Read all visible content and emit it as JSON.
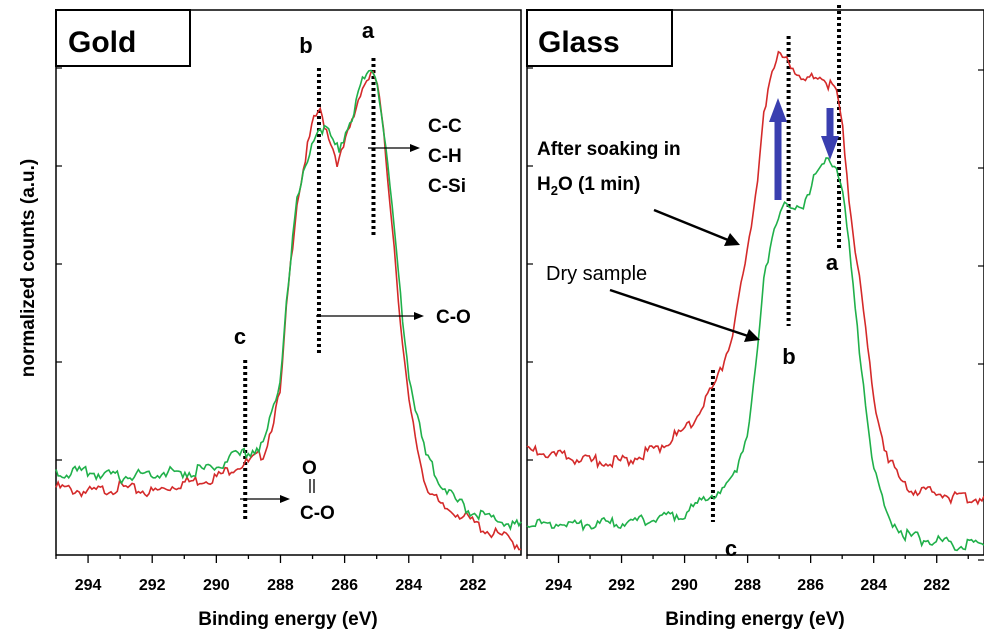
{
  "colors": {
    "red": "#d42a2a",
    "green": "#20b04a",
    "blue": "#3a3fb0"
  },
  "ylabel": "normalized counts (a.u.)",
  "chart_data": [
    {
      "type": "line",
      "title": "Gold",
      "xlabel": "Binding energy (eV)",
      "ylabel": "normalized counts (a.u.)",
      "xlim": [
        295,
        280.5
      ],
      "xticks": [
        294,
        292,
        290,
        288,
        286,
        284,
        282
      ],
      "ylim": [
        0,
        1
      ],
      "series": [
        {
          "color": "red",
          "x": [
            295,
            294,
            293,
            292,
            291,
            290,
            289.5,
            289,
            288.5,
            288,
            287.8,
            287.5,
            287.2,
            287,
            286.8,
            286.5,
            286.2,
            286,
            285.7,
            285.5,
            285.2,
            285,
            284.8,
            284.5,
            284.2,
            284,
            283.7,
            283.5,
            283,
            282.5,
            282,
            281.5,
            281,
            280.5
          ],
          "y": [
            0.13,
            0.12,
            0.13,
            0.12,
            0.14,
            0.15,
            0.17,
            0.18,
            0.2,
            0.32,
            0.5,
            0.7,
            0.8,
            0.86,
            0.89,
            0.84,
            0.78,
            0.82,
            0.88,
            0.93,
            0.96,
            0.95,
            0.85,
            0.65,
            0.42,
            0.3,
            0.2,
            0.14,
            0.09,
            0.08,
            0.06,
            0.04,
            0.03,
            0.01
          ]
        },
        {
          "color": "green",
          "x": [
            295,
            294,
            293,
            292,
            291,
            290,
            289.5,
            289,
            288.5,
            288,
            287.8,
            287.5,
            287.2,
            287,
            286.8,
            286.5,
            286.2,
            286,
            285.7,
            285.5,
            285.2,
            285,
            284.8,
            284.5,
            284.2,
            284,
            283.7,
            283.5,
            283,
            282.5,
            282,
            281.5,
            281,
            280.5
          ],
          "y": [
            0.16,
            0.16,
            0.15,
            0.16,
            0.16,
            0.17,
            0.19,
            0.2,
            0.22,
            0.35,
            0.52,
            0.7,
            0.78,
            0.83,
            0.86,
            0.84,
            0.81,
            0.84,
            0.89,
            0.94,
            0.97,
            0.96,
            0.86,
            0.68,
            0.47,
            0.36,
            0.26,
            0.2,
            0.14,
            0.1,
            0.08,
            0.07,
            0.06,
            0.05
          ]
        }
      ],
      "peak_lines": [
        {
          "label": "a",
          "x": 285.1
        },
        {
          "label": "b",
          "x": 286.8
        },
        {
          "label": "c",
          "x": 289.1
        }
      ],
      "annotations": [
        {
          "lines": [
            "C-C",
            "C-H",
            "C-Si"
          ]
        },
        {
          "lines": [
            "C-O"
          ]
        },
        {
          "lines": [
            "O",
            "C-O"
          ]
        }
      ]
    },
    {
      "type": "line",
      "title": "Glass",
      "xlabel": "Binding energy (eV)",
      "xlim": [
        295,
        280.5
      ],
      "xticks": [
        294,
        292,
        290,
        288,
        286,
        284,
        282
      ],
      "ylim": [
        0,
        1
      ],
      "series": [
        {
          "name": "After soaking in H2O (1 min)",
          "color": "red",
          "x": [
            295,
            294,
            293,
            292,
            291,
            290,
            289.5,
            289,
            288.5,
            288,
            287.7,
            287.5,
            287.2,
            287,
            286.8,
            286.5,
            286.2,
            286,
            285.7,
            285.5,
            285.2,
            285,
            284.8,
            284.5,
            284.2,
            284,
            283.7,
            283.5,
            283,
            282.5,
            282,
            281.5,
            281,
            280.5
          ],
          "y": [
            0.2,
            0.19,
            0.18,
            0.18,
            0.2,
            0.24,
            0.28,
            0.33,
            0.42,
            0.58,
            0.72,
            0.85,
            0.93,
            0.96,
            0.97,
            0.93,
            0.9,
            0.92,
            0.92,
            0.91,
            0.89,
            0.83,
            0.7,
            0.55,
            0.4,
            0.3,
            0.22,
            0.18,
            0.13,
            0.12,
            0.12,
            0.11,
            0.11,
            0.11
          ]
        },
        {
          "name": "Dry sample",
          "color": "green",
          "x": [
            295,
            294,
            293,
            292,
            291,
            290,
            289.5,
            289,
            288.5,
            288,
            287.7,
            287.5,
            287.2,
            287,
            286.8,
            286.5,
            286.2,
            286,
            285.7,
            285.5,
            285.2,
            285,
            284.8,
            284.5,
            284.2,
            284,
            283.7,
            283.5,
            283,
            282.5,
            282,
            281.5,
            281,
            280.5
          ],
          "y": [
            0.06,
            0.06,
            0.06,
            0.06,
            0.07,
            0.08,
            0.1,
            0.12,
            0.14,
            0.24,
            0.38,
            0.52,
            0.62,
            0.66,
            0.67,
            0.66,
            0.68,
            0.71,
            0.74,
            0.76,
            0.75,
            0.71,
            0.6,
            0.42,
            0.27,
            0.17,
            0.1,
            0.07,
            0.04,
            0.03,
            0.03,
            0.02,
            0.02,
            0.02
          ]
        }
      ],
      "peak_lines": [
        {
          "label": "a",
          "x": 285.1
        },
        {
          "label": "b",
          "x": 286.7
        },
        {
          "label": "c",
          "x": 289.1
        }
      ],
      "annotations": [
        {
          "text": "After soaking in",
          "text2": "H",
          "sub": "2",
          "text3": "O (1 min)"
        },
        {
          "text": "Dry sample"
        }
      ]
    }
  ]
}
